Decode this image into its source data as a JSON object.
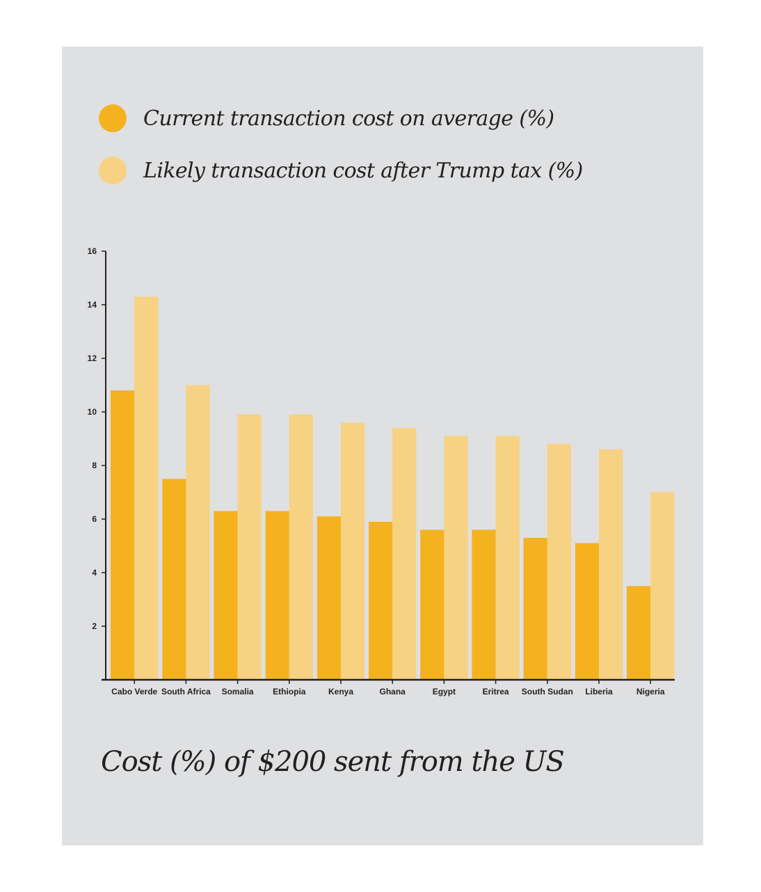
{
  "colors": {
    "current": "#f5b21f",
    "likely": "#f7d283",
    "panel": "#dfe0e1",
    "axis": "#231f20"
  },
  "legend": {
    "current_label": "Current transaction cost on average (%)",
    "likely_label": "Likely transaction cost after Trump tax (%)"
  },
  "caption": "Cost (%) of $200 sent from the US",
  "chart_data": {
    "type": "bar",
    "title": "Cost (%) of $200 sent from the US",
    "xlabel": "",
    "ylabel": "",
    "categories": [
      "Cabo Verde",
      "South Africa",
      "Somalia",
      "Ethiopia",
      "Kenya",
      "Ghana",
      "Egypt",
      "Eritrea",
      "South Sudan",
      "Liberia",
      "Nigeria"
    ],
    "series": [
      {
        "name": "Current transaction cost on average (%)",
        "values": [
          10.8,
          7.5,
          6.3,
          6.3,
          6.1,
          5.9,
          5.6,
          5.6,
          5.3,
          5.1,
          3.5
        ]
      },
      {
        "name": "Likely transaction cost after Trump tax (%)",
        "values": [
          14.3,
          11.0,
          9.9,
          9.9,
          9.6,
          9.4,
          9.1,
          9.1,
          8.8,
          8.6,
          7.0
        ]
      }
    ],
    "yticks": [
      2,
      4,
      6,
      8,
      10,
      12,
      14,
      16
    ],
    "ylim": [
      0,
      16
    ],
    "grid": false,
    "legend": "top-left"
  }
}
